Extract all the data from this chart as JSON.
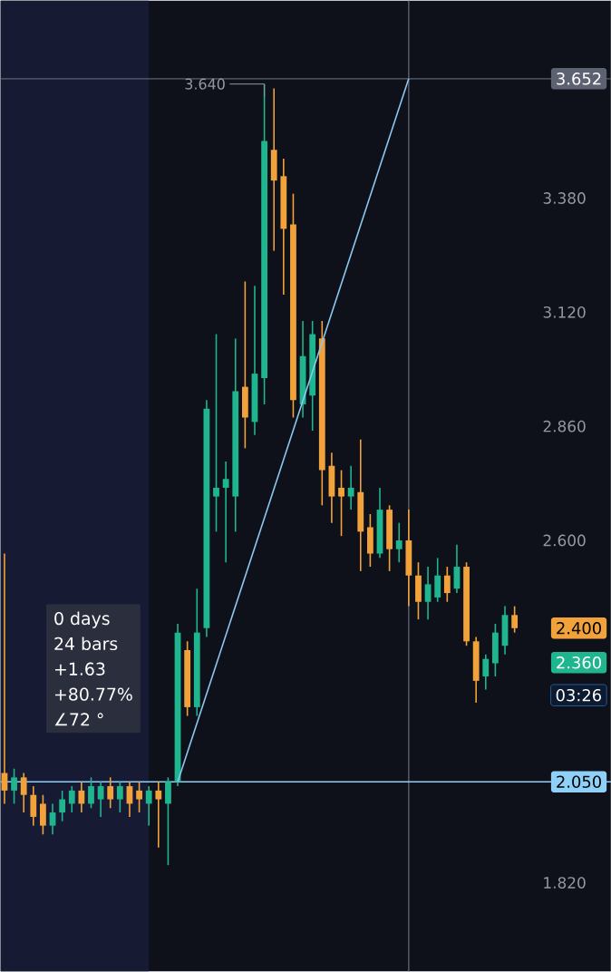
{
  "chart_data": {
    "type": "candlestick",
    "categories": [
      null,
      null,
      null,
      null,
      null,
      null,
      null,
      null,
      null,
      null,
      null,
      null,
      null,
      null,
      null,
      null,
      null,
      null,
      null,
      null,
      null,
      null,
      null,
      null,
      null,
      null,
      null,
      null,
      null,
      null,
      null,
      null,
      null,
      null,
      null,
      null,
      null,
      null,
      null,
      null,
      null,
      null,
      null,
      null,
      null,
      null,
      null,
      null,
      null,
      null,
      null,
      null,
      null,
      null
    ],
    "ohlc": [
      [
        2.07,
        2.57,
        2.0,
        2.03
      ],
      [
        2.03,
        2.08,
        2.0,
        2.06
      ],
      [
        2.06,
        2.07,
        1.98,
        2.02
      ],
      [
        2.02,
        2.04,
        1.95,
        1.97
      ],
      [
        2.0,
        2.02,
        1.93,
        1.95
      ],
      [
        1.95,
        2.0,
        1.93,
        1.98
      ],
      [
        1.98,
        2.03,
        1.96,
        2.01
      ],
      [
        2.0,
        2.04,
        1.98,
        2.03
      ],
      [
        2.03,
        2.05,
        1.98,
        2.0
      ],
      [
        2.0,
        2.06,
        1.99,
        2.04
      ],
      [
        2.01,
        2.05,
        1.97,
        2.04
      ],
      [
        2.04,
        2.06,
        1.99,
        2.01
      ],
      [
        2.01,
        2.05,
        1.98,
        2.04
      ],
      [
        2.04,
        2.05,
        1.97,
        2.0
      ],
      [
        2.03,
        2.05,
        1.98,
        2.01
      ],
      [
        2.0,
        2.04,
        1.95,
        2.03
      ],
      [
        2.03,
        2.05,
        1.9,
        2.01
      ],
      [
        2.0,
        2.06,
        1.86,
        2.05
      ],
      [
        2.05,
        2.41,
        2.04,
        2.39
      ],
      [
        2.35,
        2.37,
        2.2,
        2.22
      ],
      [
        2.22,
        2.49,
        2.2,
        2.39
      ],
      [
        2.4,
        2.92,
        2.38,
        2.9
      ],
      [
        2.7,
        3.07,
        2.62,
        2.72
      ],
      [
        2.72,
        2.78,
        2.55,
        2.74
      ],
      [
        2.7,
        3.06,
        2.62,
        2.94
      ],
      [
        2.95,
        3.19,
        2.81,
        2.88
      ],
      [
        2.87,
        3.18,
        2.84,
        2.98
      ],
      [
        2.97,
        3.64,
        2.91,
        3.51
      ],
      [
        3.49,
        3.63,
        3.26,
        3.42
      ],
      [
        3.43,
        3.47,
        3.16,
        3.31
      ],
      [
        3.32,
        3.39,
        2.88,
        2.92
      ],
      [
        2.91,
        3.1,
        2.88,
        3.02
      ],
      [
        2.93,
        3.1,
        2.85,
        3.07
      ],
      [
        3.06,
        3.1,
        2.68,
        2.76
      ],
      [
        2.77,
        2.8,
        2.64,
        2.7
      ],
      [
        2.72,
        2.76,
        2.61,
        2.7
      ],
      [
        2.7,
        2.77,
        2.67,
        2.72
      ],
      [
        2.71,
        2.83,
        2.53,
        2.62
      ],
      [
        2.63,
        2.66,
        2.54,
        2.57
      ],
      [
        2.57,
        2.72,
        2.56,
        2.67
      ],
      [
        2.67,
        2.68,
        2.53,
        2.58
      ],
      [
        2.58,
        2.64,
        2.55,
        2.6
      ],
      [
        2.6,
        2.67,
        2.45,
        2.52
      ],
      [
        2.52,
        2.55,
        2.42,
        2.46
      ],
      [
        2.46,
        2.54,
        2.42,
        2.5
      ],
      [
        2.47,
        2.56,
        2.46,
        2.52
      ],
      [
        2.52,
        2.54,
        2.46,
        2.48
      ],
      [
        2.49,
        2.59,
        2.48,
        2.54
      ],
      [
        2.54,
        2.55,
        2.36,
        2.37
      ],
      [
        2.37,
        2.38,
        2.23,
        2.28
      ],
      [
        2.29,
        2.34,
        2.26,
        2.33
      ],
      [
        2.32,
        2.41,
        2.29,
        2.39
      ],
      [
        2.36,
        2.45,
        2.34,
        2.43
      ],
      [
        2.43,
        2.45,
        2.39,
        2.4
      ]
    ],
    "colors": [
      "#f2a23a",
      "#1fb58f",
      "#f2a23a",
      "#f2a23a",
      "#f2a23a",
      "#1fb58f",
      "#1fb58f",
      "#1fb58f",
      "#f2a23a",
      "#1fb58f",
      "#1fb58f",
      "#f2a23a",
      "#1fb58f",
      "#f2a23a",
      "#f2a23a",
      "#1fb58f",
      "#f2a23a",
      "#1fb58f",
      "#1fb58f",
      "#f2a23a",
      "#1fb58f",
      "#1fb58f",
      "#1fb58f",
      "#1fb58f",
      "#1fb58f",
      "#f2a23a",
      "#1fb58f",
      "#1fb58f",
      "#f2a23a",
      "#f2a23a",
      "#f2a23a",
      "#1fb58f",
      "#1fb58f",
      "#f2a23a",
      "#f2a23a",
      "#f2a23a",
      "#1fb58f",
      "#f2a23a",
      "#f2a23a",
      "#1fb58f",
      "#f2a23a",
      "#1fb58f",
      "#f2a23a",
      "#f2a23a",
      "#1fb58f",
      "#1fb58f",
      "#f2a23a",
      "#1fb58f",
      "#f2a23a",
      "#f2a23a",
      "#1fb58f",
      "#1fb58f",
      "#1fb58f",
      "#f2a23a"
    ],
    "series": [
      {
        "type": "line",
        "values": [
          null,
          null,
          null,
          null,
          null,
          null,
          null,
          null,
          null,
          null,
          null,
          null,
          null,
          null,
          null,
          null,
          null,
          null,
          2.05,
          null,
          null,
          null,
          null,
          null,
          null,
          null,
          null,
          null,
          null,
          null,
          null,
          null,
          null,
          null,
          null,
          null,
          null,
          null,
          null,
          null,
          null,
          null,
          3.652,
          null,
          null,
          null,
          null,
          null,
          null,
          null,
          null,
          null,
          null,
          null
        ],
        "color": "#8cc8f0"
      }
    ],
    "ylim": [
      1.618,
      3.83
    ],
    "yticks": [
      {
        "value": 3.38,
        "label": "3.380"
      },
      {
        "value": 3.12,
        "label": "3.120"
      },
      {
        "value": 2.86,
        "label": "2.860"
      },
      {
        "value": 2.6,
        "label": "2.600"
      },
      {
        "value": 1.82,
        "label": "1.820"
      }
    ],
    "tick_labels": "y",
    "ref_lines": [
      {
        "axis": "y",
        "value": 3.652,
        "label": "3.652",
        "color": "#5d6272"
      },
      {
        "axis": "y",
        "value": 2.05,
        "label": "2.050",
        "color": "#8fd0f8"
      }
    ],
    "annotations": [
      "0 days",
      "24 bars",
      "+1.63",
      "+80.77%",
      "∠72 °",
      {
        "text": "3.640",
        "y": 3.64
      },
      "2.400",
      "2.360",
      "03:26"
    ]
  }
}
